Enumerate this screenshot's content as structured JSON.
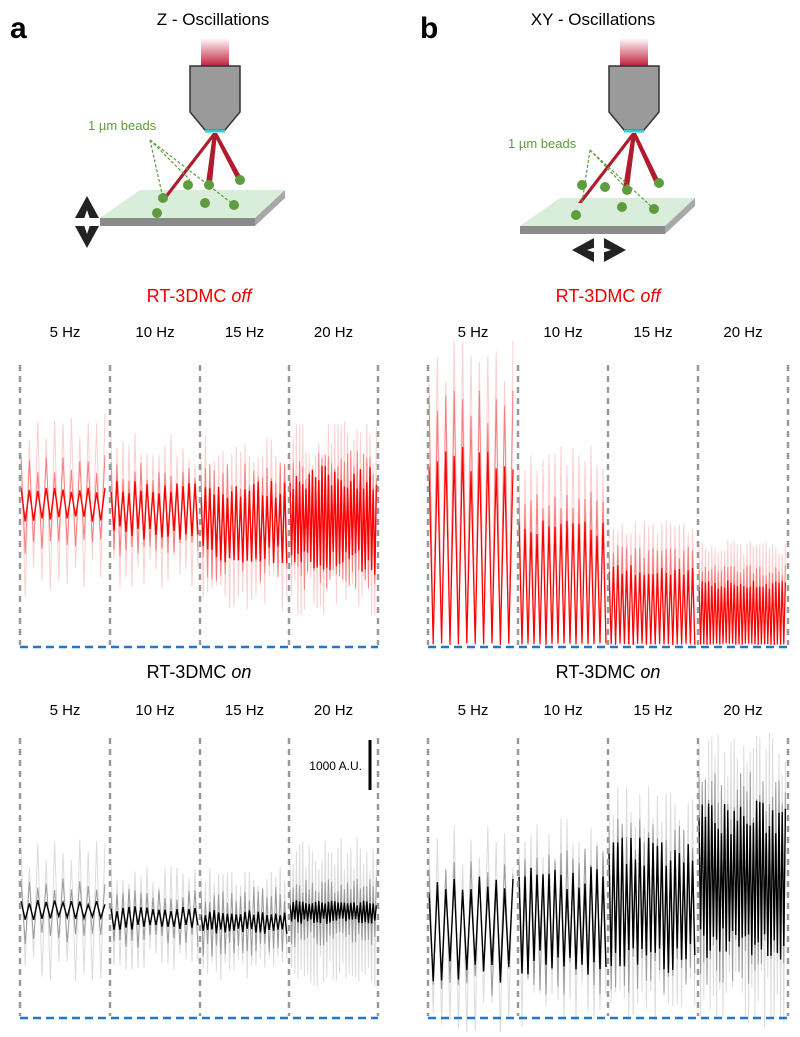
{
  "panels": [
    {
      "letter": "a",
      "title": "Z - Oscillations",
      "beads_label": "1 µm beads",
      "off": {
        "label": "RT-3DMC",
        "emph": "off",
        "freqs": [
          "5 Hz",
          "10 Hz",
          "15 Hz",
          "20 Hz"
        ]
      },
      "on": {
        "label": "RT-3DMC",
        "emph": "on",
        "freqs": [
          "5 Hz",
          "10 Hz",
          "15 Hz",
          "20 Hz"
        ],
        "scale_label": "1000 A.U."
      }
    },
    {
      "letter": "b",
      "title": "XY - Oscillations",
      "beads_label": "1 µm beads",
      "off": {
        "label": "RT-3DMC",
        "emph": "off",
        "freqs": [
          "5 Hz",
          "10 Hz",
          "15 Hz",
          "20 Hz"
        ]
      },
      "on": {
        "label": "RT-3DMC",
        "emph": "on",
        "freqs": [
          "5 Hz",
          "10 Hz",
          "15 Hz",
          "20 Hz"
        ]
      }
    }
  ]
}
